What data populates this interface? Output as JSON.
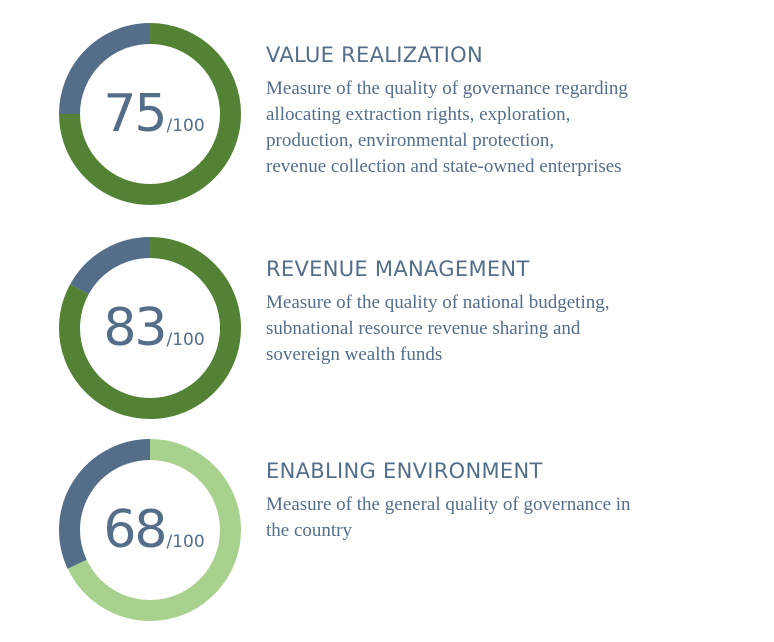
{
  "chart_data": [
    {
      "type": "pie",
      "title": "VALUE REALIZATION",
      "description": "Measure of the quality of governance regarding\nallocating extraction rights, exploration,\nproduction, environmental protection,\nrevenue collection and state-owned enterprises",
      "value": 75,
      "max": 100,
      "value_label": "75",
      "max_label": "/100",
      "fill_color": "#548235",
      "remainder_color": "#546e8a"
    },
    {
      "type": "pie",
      "title": "REVENUE MANAGEMENT",
      "description": "Measure of the quality of national budgeting,\nsubnational resource revenue sharing and\nsovereign wealth funds",
      "value": 83,
      "max": 100,
      "value_label": "83",
      "max_label": "/100",
      "fill_color": "#548235",
      "remainder_color": "#546e8a"
    },
    {
      "type": "pie",
      "title": "ENABLING ENVIRONMENT",
      "description": "Measure of the general quality of governance in\nthe country",
      "value": 68,
      "max": 100,
      "value_label": "68",
      "max_label": "/100",
      "fill_color": "#a9d18e",
      "remainder_color": "#546e8a"
    }
  ]
}
